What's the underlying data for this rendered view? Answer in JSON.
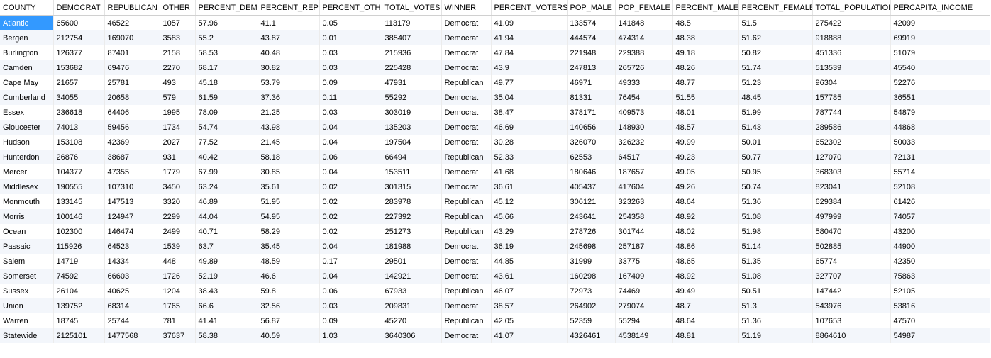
{
  "table": {
    "columns": [
      "COUNTY",
      "DEMOCRAT",
      "REPUBLICAN",
      "OTHER",
      "PERCENT_DEM",
      "PERCENT_REP",
      "PERCENT_OTH",
      "TOTAL_VOTES",
      "WINNER",
      "PERCENT_VOTERS",
      "POP_MALE",
      "POP_FEMALE",
      "PERCENT_MALE",
      "PERCENT_FEMALE",
      "TOTAL_POPULATION",
      "PERCAPITA_INCOME"
    ],
    "selected_cell": {
      "row": 0,
      "col": 0
    },
    "rows": [
      [
        "Atlantic",
        "65600",
        "46522",
        "1057",
        "57.96",
        "41.1",
        "0.05",
        "113179",
        "Democrat",
        "41.09",
        "133574",
        "141848",
        "48.5",
        "51.5",
        "275422",
        "42099"
      ],
      [
        "Bergen",
        "212754",
        "169070",
        "3583",
        "55.2",
        "43.87",
        "0.01",
        "385407",
        "Democrat",
        "41.94",
        "444574",
        "474314",
        "48.38",
        "51.62",
        "918888",
        "69919"
      ],
      [
        "Burlington",
        "126377",
        "87401",
        "2158",
        "58.53",
        "40.48",
        "0.03",
        "215936",
        "Democrat",
        "47.84",
        "221948",
        "229388",
        "49.18",
        "50.82",
        "451336",
        "51079"
      ],
      [
        "Camden",
        "153682",
        "69476",
        "2270",
        "68.17",
        "30.82",
        "0.03",
        "225428",
        "Democrat",
        "43.9",
        "247813",
        "265726",
        "48.26",
        "51.74",
        "513539",
        "45540"
      ],
      [
        "Cape May",
        "21657",
        "25781",
        "493",
        "45.18",
        "53.79",
        "0.09",
        "47931",
        "Republican",
        "49.77",
        "46971",
        "49333",
        "48.77",
        "51.23",
        "96304",
        "52276"
      ],
      [
        "Cumberland",
        "34055",
        "20658",
        "579",
        "61.59",
        "37.36",
        "0.11",
        "55292",
        "Democrat",
        "35.04",
        "81331",
        "76454",
        "51.55",
        "48.45",
        "157785",
        "36551"
      ],
      [
        "Essex",
        "236618",
        "64406",
        "1995",
        "78.09",
        "21.25",
        "0.03",
        "303019",
        "Democrat",
        "38.47",
        "378171",
        "409573",
        "48.01",
        "51.99",
        "787744",
        "54879"
      ],
      [
        "Gloucester",
        "74013",
        "59456",
        "1734",
        "54.74",
        "43.98",
        "0.04",
        "135203",
        "Democrat",
        "46.69",
        "140656",
        "148930",
        "48.57",
        "51.43",
        "289586",
        "44868"
      ],
      [
        "Hudson",
        "153108",
        "42369",
        "2027",
        "77.52",
        "21.45",
        "0.04",
        "197504",
        "Democrat",
        "30.28",
        "326070",
        "326232",
        "49.99",
        "50.01",
        "652302",
        "50033"
      ],
      [
        "Hunterdon",
        "26876",
        "38687",
        "931",
        "40.42",
        "58.18",
        "0.06",
        "66494",
        "Republican",
        "52.33",
        "62553",
        "64517",
        "49.23",
        "50.77",
        "127070",
        "72131"
      ],
      [
        "Mercer",
        "104377",
        "47355",
        "1779",
        "67.99",
        "30.85",
        "0.04",
        "153511",
        "Democrat",
        "41.68",
        "180646",
        "187657",
        "49.05",
        "50.95",
        "368303",
        "55714"
      ],
      [
        "Middlesex",
        "190555",
        "107310",
        "3450",
        "63.24",
        "35.61",
        "0.02",
        "301315",
        "Democrat",
        "36.61",
        "405437",
        "417604",
        "49.26",
        "50.74",
        "823041",
        "52108"
      ],
      [
        "Monmouth",
        "133145",
        "147513",
        "3320",
        "46.89",
        "51.95",
        "0.02",
        "283978",
        "Republican",
        "45.12",
        "306121",
        "323263",
        "48.64",
        "51.36",
        "629384",
        "61426"
      ],
      [
        "Morris",
        "100146",
        "124947",
        "2299",
        "44.04",
        "54.95",
        "0.02",
        "227392",
        "Republican",
        "45.66",
        "243641",
        "254358",
        "48.92",
        "51.08",
        "497999",
        "74057"
      ],
      [
        "Ocean",
        "102300",
        "146474",
        "2499",
        "40.71",
        "58.29",
        "0.02",
        "251273",
        "Republican",
        "43.29",
        "278726",
        "301744",
        "48.02",
        "51.98",
        "580470",
        "43200"
      ],
      [
        "Passaic",
        "115926",
        "64523",
        "1539",
        "63.7",
        "35.45",
        "0.04",
        "181988",
        "Democrat",
        "36.19",
        "245698",
        "257187",
        "48.86",
        "51.14",
        "502885",
        "44900"
      ],
      [
        "Salem",
        "14719",
        "14334",
        "448",
        "49.89",
        "48.59",
        "0.17",
        "29501",
        "Democrat",
        "44.85",
        "31999",
        "33775",
        "48.65",
        "51.35",
        "65774",
        "42350"
      ],
      [
        "Somerset",
        "74592",
        "66603",
        "1726",
        "52.19",
        "46.6",
        "0.04",
        "142921",
        "Democrat",
        "43.61",
        "160298",
        "167409",
        "48.92",
        "51.08",
        "327707",
        "75863"
      ],
      [
        "Sussex",
        "26104",
        "40625",
        "1204",
        "38.43",
        "59.8",
        "0.06",
        "67933",
        "Republican",
        "46.07",
        "72973",
        "74469",
        "49.49",
        "50.51",
        "147442",
        "52105"
      ],
      [
        "Union",
        "139752",
        "68314",
        "1765",
        "66.6",
        "32.56",
        "0.03",
        "209831",
        "Democrat",
        "38.57",
        "264902",
        "279074",
        "48.7",
        "51.3",
        "543976",
        "53816"
      ],
      [
        "Warren",
        "18745",
        "25744",
        "781",
        "41.41",
        "56.87",
        "0.09",
        "45270",
        "Republican",
        "42.05",
        "52359",
        "55294",
        "48.64",
        "51.36",
        "107653",
        "47570"
      ],
      [
        "Statewide",
        "2125101",
        "1477568",
        "37637",
        "58.38",
        "40.59",
        "1.03",
        "3640306",
        "Democrat",
        "41.07",
        "4326461",
        "4538149",
        "48.81",
        "51.19",
        "8864610",
        "54987"
      ]
    ]
  }
}
